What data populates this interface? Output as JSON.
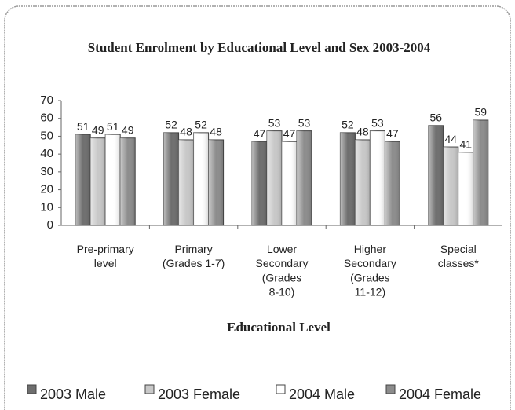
{
  "chart_data": {
    "type": "bar",
    "title": "Student Enrolment by Educational Level and Sex 2003-2004",
    "xlabel": "Educational Level",
    "categories": [
      "Pre-primary\nlevel",
      "Primary\n(Grades 1-7)",
      "Lower\nSecondary\n(Grades\n8-10)",
      "Higher\nSecondary\n(Grades\n11-12)",
      "Special\nclasses*"
    ],
    "series": [
      {
        "name": "2003 Male",
        "color": "#6e6e6e",
        "values": [
          51,
          52,
          47,
          52,
          56
        ]
      },
      {
        "name": "2003 Female",
        "color": "#c8c8c8",
        "values": [
          49,
          48,
          53,
          48,
          44
        ]
      },
      {
        "name": "2004 Male",
        "color": "#ffffff",
        "values": [
          51,
          52,
          47,
          53,
          41
        ]
      },
      {
        "name": "2004 Female",
        "color": "#8c8c8c",
        "values": [
          49,
          48,
          53,
          47,
          59
        ]
      }
    ],
    "ylim": [
      0,
      70
    ],
    "yticks": [
      0,
      10,
      20,
      30,
      40,
      50,
      60,
      70
    ],
    "legend": "bottom"
  }
}
